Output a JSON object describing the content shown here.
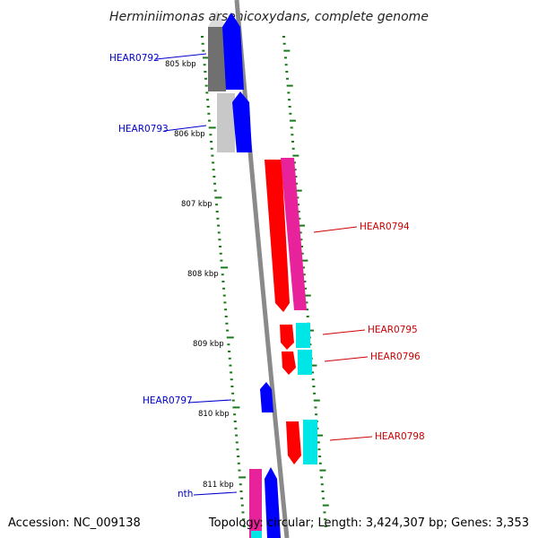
{
  "title": "Herminiimonas arsenicoxydans, complete genome",
  "accession": "Accession: NC_009138",
  "topology": "Topology: circular; Length: 3,424,307 bp; Genes: 3,353",
  "colors": {
    "backbone": "#8a8a8a",
    "tick": "#1a7a1a",
    "label_forward": "#0000cc",
    "label_reverse": "#cc0000",
    "gray_dark": "#707070",
    "gray_light": "#c8c8c8",
    "blue": "#0000ff",
    "red": "#ff0000",
    "magenta": "#e8229a",
    "cyan": "#00e6e6"
  },
  "kbp_labels": [
    "805 kbp",
    "806 kbp",
    "807 kbp",
    "808 kbp",
    "809 kbp",
    "810 kbp",
    "811 kbp"
  ],
  "genes": [
    {
      "name": "HEAR0792",
      "strand": "forward"
    },
    {
      "name": "HEAR0793",
      "strand": "forward"
    },
    {
      "name": "HEAR0794",
      "strand": "reverse"
    },
    {
      "name": "HEAR0795",
      "strand": "reverse"
    },
    {
      "name": "HEAR0796",
      "strand": "reverse"
    },
    {
      "name": "HEAR0797",
      "strand": "forward"
    },
    {
      "name": "HEAR0798",
      "strand": "reverse"
    },
    {
      "name": "nth",
      "strand": "forward"
    }
  ]
}
